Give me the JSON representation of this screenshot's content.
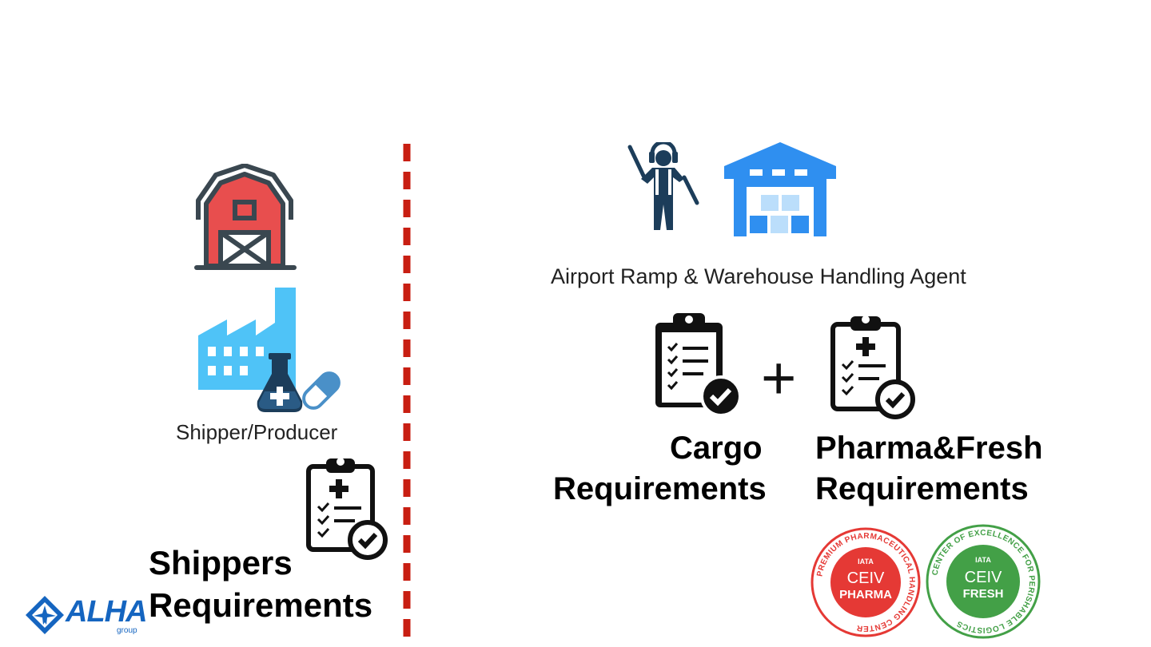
{
  "left": {
    "shipper_label": "Shipper/Producer",
    "requirements_line1": "Shippers",
    "requirements_line2": "Requirements"
  },
  "right": {
    "agent_label": "Airport Ramp & Warehouse Handling Agent",
    "plus_sign": "+",
    "cargo_line1": "Cargo",
    "cargo_line2": "Requirements",
    "pharma_line1": "Pharma&Fresh",
    "pharma_line2": "Requirements"
  },
  "badges": {
    "pharma": {
      "ring_text": "PREMIUM PHARMACEUTICAL HANDLING CENTER",
      "iata": "IATA",
      "line1": "CEIV",
      "line2": "PHARMA"
    },
    "fresh": {
      "ring_text": "CENTER OF EXCELLENCE FOR PERISHABLE LOGISTICS",
      "iata": "IATA",
      "line1": "CEIV",
      "line2": "FRESH"
    }
  },
  "logo": {
    "name": "ALHA",
    "sub": "group"
  },
  "colors": {
    "divider_red": "#c81e12",
    "barn_red": "#e84e4e",
    "barn_outline": "#3a4750",
    "factory_blue": "#4fc3f7",
    "warehouse_blue": "#2f8ff0",
    "navy": "#1c3d5a",
    "pharma_red": "#e53935",
    "fresh_green": "#43a047",
    "logo_blue": "#1565c0"
  },
  "icons": [
    "barn-icon",
    "factory-icon",
    "flask-icon",
    "pill-icon",
    "clipboard-check-icon",
    "ramp-agent-icon",
    "warehouse-icon",
    "clipboard-medical-icon"
  ]
}
